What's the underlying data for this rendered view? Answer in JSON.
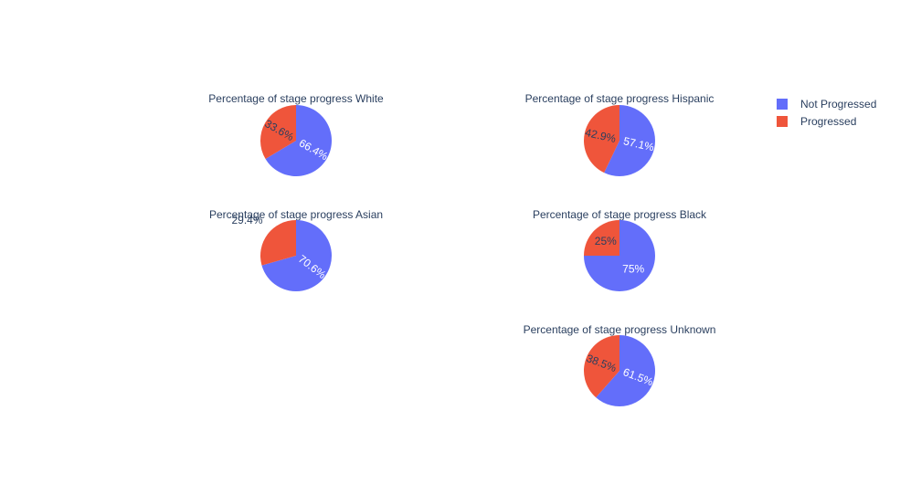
{
  "colors": {
    "not_progressed": "#636efa",
    "progressed": "#ef553b",
    "text": "#2a3f5f",
    "label_dark": "#2a3f5f",
    "label_light": "#ffffff",
    "background": "#ffffff"
  },
  "legend": {
    "placement": "top-right",
    "items": [
      {
        "label": "Not Progressed",
        "color_key": "not_progressed"
      },
      {
        "label": "Progressed",
        "color_key": "progressed"
      }
    ]
  },
  "chart_data": [
    {
      "type": "pie",
      "title": "Percentage of stage progress White",
      "categories": [
        "Not Progressed",
        "Progressed"
      ],
      "values": [
        66.4,
        33.6
      ],
      "labels": [
        "66.4%",
        "33.6%"
      ]
    },
    {
      "type": "pie",
      "title": "Percentage of stage progress Hispanic",
      "categories": [
        "Not Progressed",
        "Progressed"
      ],
      "values": [
        57.1,
        42.9
      ],
      "labels": [
        "57.1%",
        "42.9%"
      ]
    },
    {
      "type": "pie",
      "title": "Percentage of stage progress Asian",
      "categories": [
        "Not Progressed",
        "Progressed"
      ],
      "values": [
        70.6,
        29.4
      ],
      "labels": [
        "70.6%",
        "29.4%"
      ]
    },
    {
      "type": "pie",
      "title": "Percentage of stage progress Black",
      "categories": [
        "Not Progressed",
        "Progressed"
      ],
      "values": [
        75,
        25
      ],
      "labels": [
        "75%",
        "25%"
      ]
    },
    {
      "type": "pie",
      "title": "Percentage of stage progress Unknown",
      "categories": [
        "Not Progressed",
        "Progressed"
      ],
      "values": [
        61.5,
        38.5
      ],
      "labels": [
        "61.5%",
        "38.5%"
      ]
    }
  ]
}
